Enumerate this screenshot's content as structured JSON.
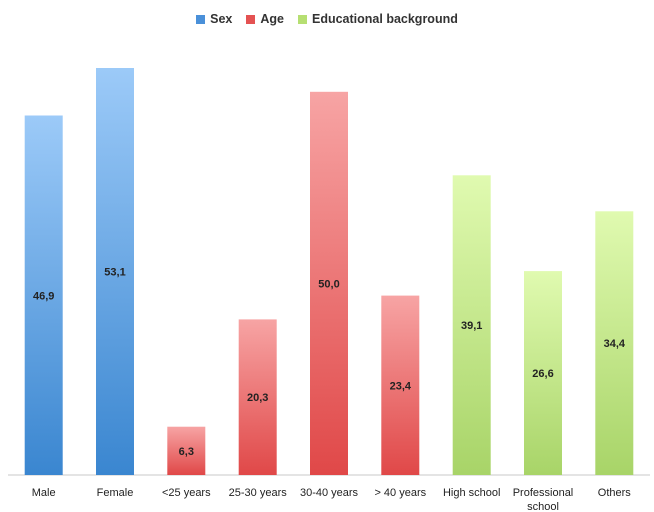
{
  "chart_data": {
    "type": "bar",
    "categories": [
      "Male",
      "Female",
      "<25 years",
      "25-30 years",
      "30-40 years",
      "> 40 years",
      "High school",
      "Professional school",
      "Others"
    ],
    "category_lines": [
      [
        "Male"
      ],
      [
        "Female"
      ],
      [
        "<25 years"
      ],
      [
        "25-30 years"
      ],
      [
        "30-40 years"
      ],
      [
        "> 40 years"
      ],
      [
        "High school"
      ],
      [
        "Professional",
        "school"
      ],
      [
        "Others"
      ]
    ],
    "values": [
      46.9,
      53.1,
      6.3,
      20.3,
      50.0,
      23.4,
      39.1,
      26.6,
      34.4
    ],
    "value_labels": [
      "46,9",
      "53,1",
      "6,3",
      "20,3",
      "50,0",
      "23,4",
      "39,1",
      "26,6",
      "34,4"
    ],
    "groups": [
      "Sex",
      "Sex",
      "Age",
      "Age",
      "Age",
      "Age",
      "Educational background",
      "Educational background",
      "Educational background"
    ],
    "ylim": [
      0,
      53.1
    ],
    "grid": false,
    "legend_position": "top",
    "title": "",
    "xlabel": "",
    "ylabel": ""
  },
  "legend": [
    {
      "label": "Sex",
      "color": "#4a90d9",
      "light": "#9ccaf8",
      "dark": "#3a86d0"
    },
    {
      "label": "Age",
      "color": "#e45252",
      "light": "#f7a4a4",
      "dark": "#e04848"
    },
    {
      "label": "Educational background",
      "color": "#b6df72",
      "light": "#e0fab0",
      "dark": "#a8d468"
    }
  ]
}
